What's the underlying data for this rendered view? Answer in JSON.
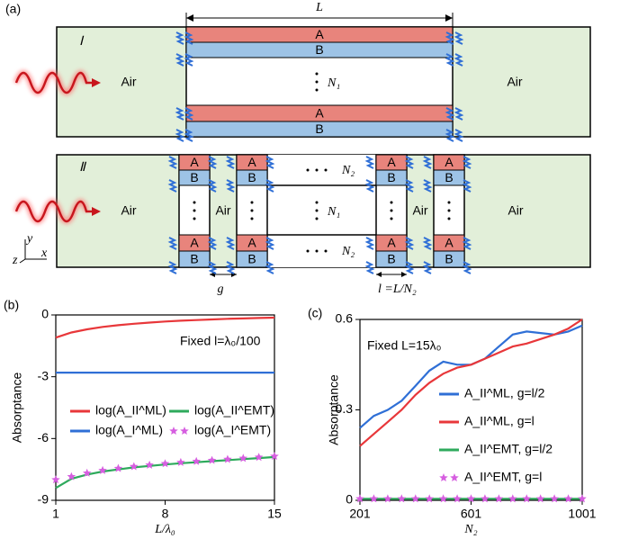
{
  "panel_labels": [
    "(a)",
    "(b)",
    "(c)"
  ],
  "diagram": {
    "length": "L",
    "axes": [
      "y",
      "x",
      "z"
    ],
    "part_I": {
      "label": "Ⅰ",
      "layers": [
        "A",
        "B",
        "A",
        "B"
      ],
      "air": [
        "Air",
        "Air"
      ],
      "n": "N₁"
    },
    "part_II": {
      "label": "Ⅱ",
      "layers": [
        "A",
        "B",
        "A",
        "B",
        "A",
        "B",
        "A",
        "B",
        "A",
        "B",
        "A",
        "B",
        "A",
        "B",
        "A",
        "B"
      ],
      "air": [
        "Air",
        "Air",
        "Air",
        "Air"
      ],
      "n1": "N₁",
      "n2": [
        "N₂",
        "N₂"
      ],
      "g": "g",
      "l": "l =L/N₂"
    }
  },
  "chart_data": [
    {
      "type": "line",
      "annotation": "Fixed l=λ₀/100",
      "xlabel": "L/λ₀",
      "ylabel": "Absorptance",
      "x": [
        1,
        2,
        3,
        4,
        5,
        6,
        7,
        8,
        9,
        10,
        11,
        12,
        13,
        14,
        15
      ],
      "xlim": [
        1,
        15
      ],
      "xticks": [
        1,
        8,
        15
      ],
      "ylim": [
        -9,
        0
      ],
      "yticks": [
        -9,
        -6,
        -3,
        0
      ],
      "legend_columns": 2,
      "series": [
        {
          "name": "log(A_II^ML)",
          "color": "#e8373a",
          "style": "line",
          "values": [
            -1.1,
            -0.85,
            -0.7,
            -0.58,
            -0.5,
            -0.43,
            -0.37,
            -0.32,
            -0.28,
            -0.25,
            -0.22,
            -0.19,
            -0.17,
            -0.15,
            -0.13
          ]
        },
        {
          "name": "log(A_I^ML)",
          "color": "#2f6fd6",
          "style": "line",
          "values": [
            -2.8,
            -2.8,
            -2.8,
            -2.8,
            -2.8,
            -2.8,
            -2.8,
            -2.8,
            -2.8,
            -2.8,
            -2.8,
            -2.8,
            -2.8,
            -2.8,
            -2.8
          ]
        },
        {
          "name": "log(A_II^EMT)",
          "color": "#2eaa5c",
          "style": "line",
          "values": [
            -8.4,
            -7.95,
            -7.75,
            -7.6,
            -7.5,
            -7.4,
            -7.33,
            -7.26,
            -7.2,
            -7.15,
            -7.1,
            -7.05,
            -7.0,
            -6.95,
            -6.9
          ]
        },
        {
          "name": "log(A_I^EMT)",
          "color": "#d65ee0",
          "style": "stars",
          "values": [
            -8.0,
            -7.85,
            -7.68,
            -7.55,
            -7.45,
            -7.36,
            -7.29,
            -7.22,
            -7.16,
            -7.11,
            -7.06,
            -7.01,
            -6.96,
            -6.91,
            -6.86
          ]
        }
      ]
    },
    {
      "type": "line",
      "annotation": "Fixed L=15λ₀",
      "xlabel": "N₂",
      "ylabel": "Absorptance",
      "x": [
        201,
        251,
        301,
        351,
        401,
        451,
        501,
        551,
        601,
        651,
        701,
        751,
        801,
        851,
        901,
        951,
        1001
      ],
      "xlim": [
        201,
        1001
      ],
      "xticks": [
        201,
        601,
        1001
      ],
      "ylim": [
        0,
        0.6
      ],
      "yticks": [
        0,
        0.3,
        0.6
      ],
      "legend_columns": 1,
      "series": [
        {
          "name": "A_II^ML, g=l/2",
          "color": "#2f6fd6",
          "style": "line",
          "values": [
            0.24,
            0.28,
            0.3,
            0.33,
            0.38,
            0.43,
            0.46,
            0.45,
            0.45,
            0.47,
            0.51,
            0.55,
            0.56,
            0.555,
            0.55,
            0.56,
            0.58
          ]
        },
        {
          "name": "A_II^ML, g=l",
          "color": "#e8373a",
          "style": "line",
          "values": [
            0.18,
            0.22,
            0.26,
            0.3,
            0.35,
            0.39,
            0.42,
            0.44,
            0.45,
            0.47,
            0.49,
            0.51,
            0.52,
            0.535,
            0.55,
            0.57,
            0.6
          ]
        },
        {
          "name": "A_II^EMT, g=l/2",
          "color": "#2eaa5c",
          "style": "line",
          "values": [
            0.005,
            0.005,
            0.005,
            0.005,
            0.005,
            0.005,
            0.005,
            0.005,
            0.005,
            0.005,
            0.005,
            0.005,
            0.005,
            0.005,
            0.005,
            0.005,
            0.005
          ]
        },
        {
          "name": "A_II^EMT, g=l",
          "color": "#d65ee0",
          "style": "stars",
          "values": [
            0.005,
            0.005,
            0.005,
            0.005,
            0.005,
            0.005,
            0.005,
            0.005,
            0.005,
            0.005,
            0.005,
            0.005,
            0.005,
            0.005,
            0.005,
            0.005,
            0.005
          ]
        }
      ]
    }
  ]
}
